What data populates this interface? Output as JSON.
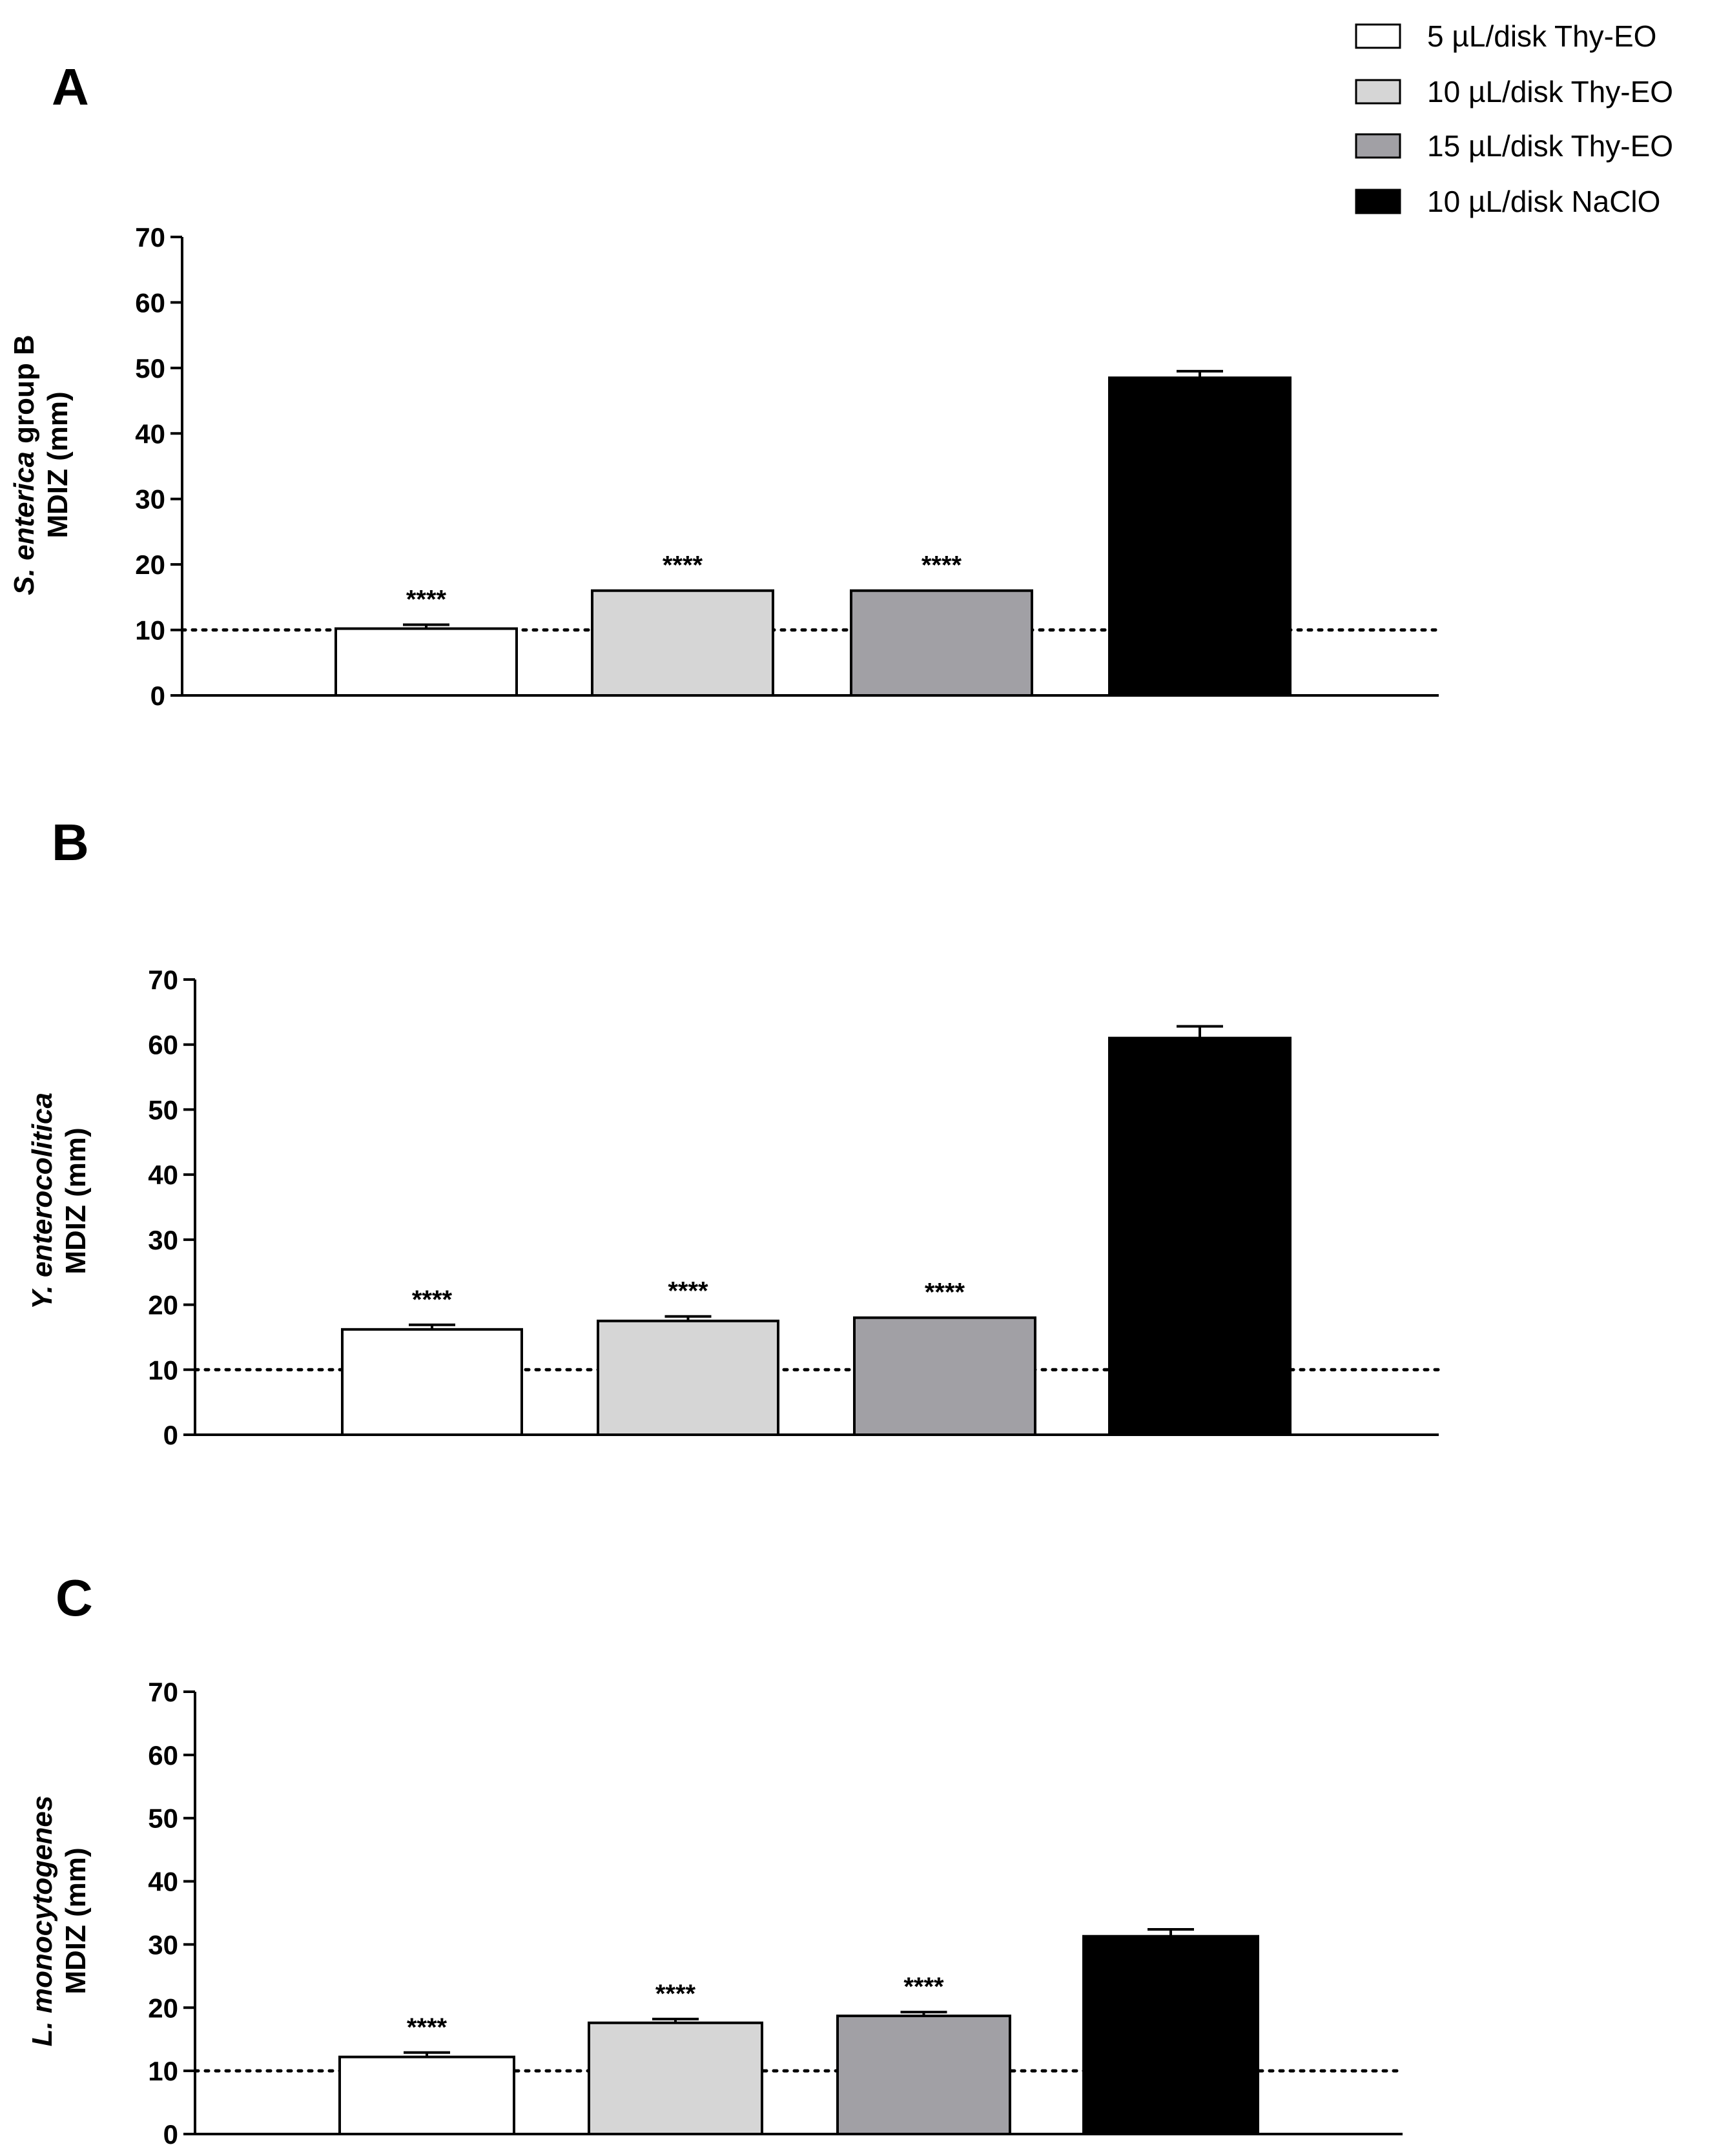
{
  "legend": {
    "items": [
      {
        "label": "5 µL/disk Thy-EO",
        "color": "#ffffff"
      },
      {
        "label": "10 µL/disk Thy-EO",
        "color": "#d6d6d6"
      },
      {
        "label": "15 µL/disk Thy-EO",
        "color": "#a1a0a5"
      },
      {
        "label": "10 µL/disk NaClO",
        "color": "#000000"
      }
    ]
  },
  "colors": {
    "axis": "#000000",
    "bar_stroke": "#000000"
  },
  "chart_data": [
    {
      "type": "bar",
      "panel": "A",
      "ylabel_italic": "S. enterica",
      "ylabel_rest": " group B",
      "ylabel_line2": "MDIZ (mm)",
      "categories": [
        "5 µL/disk Thy-EO",
        "10 µL/disk Thy-EO",
        "15 µL/disk Thy-EO",
        "10 µL/disk NaClO"
      ],
      "values": [
        10.2,
        16,
        16,
        48.5
      ],
      "errors": [
        0.6,
        0,
        0,
        1.0
      ],
      "significance": [
        "****",
        "****",
        "****",
        ""
      ],
      "ylim": [
        0,
        70
      ],
      "yticks": [
        0,
        10,
        20,
        30,
        40,
        50,
        60,
        70
      ],
      "reference_line": 10
    },
    {
      "type": "bar",
      "panel": "B",
      "ylabel_italic": "Y. enterocolitica",
      "ylabel_rest": "",
      "ylabel_line2": "MDIZ (mm)",
      "categories": [
        "5 µL/disk Thy-EO",
        "10 µL/disk Thy-EO",
        "15 µL/disk Thy-EO",
        "10 µL/disk NaClO"
      ],
      "values": [
        16.2,
        17.5,
        18,
        61
      ],
      "errors": [
        0.7,
        0.7,
        0,
        1.8
      ],
      "significance": [
        "****",
        "****",
        "****",
        ""
      ],
      "ylim": [
        0,
        70
      ],
      "yticks": [
        0,
        10,
        20,
        30,
        40,
        50,
        60,
        70
      ],
      "reference_line": 10
    },
    {
      "type": "bar",
      "panel": "C",
      "ylabel_italic": "L. monocytogenes",
      "ylabel_rest": "",
      "ylabel_line2": "MDIZ (mm)",
      "categories": [
        "5 µL/disk Thy-EO",
        "10 µL/disk Thy-EO",
        "15 µL/disk Thy-EO",
        "10 µL/disk NaClO"
      ],
      "values": [
        12.2,
        17.6,
        18.7,
        31.3
      ],
      "errors": [
        0.7,
        0.6,
        0.6,
        1.1
      ],
      "significance": [
        "****",
        "****",
        "****",
        ""
      ],
      "ylim": [
        0,
        70
      ],
      "yticks": [
        0,
        10,
        20,
        30,
        40,
        50,
        60,
        70
      ],
      "reference_line": 10
    }
  ]
}
